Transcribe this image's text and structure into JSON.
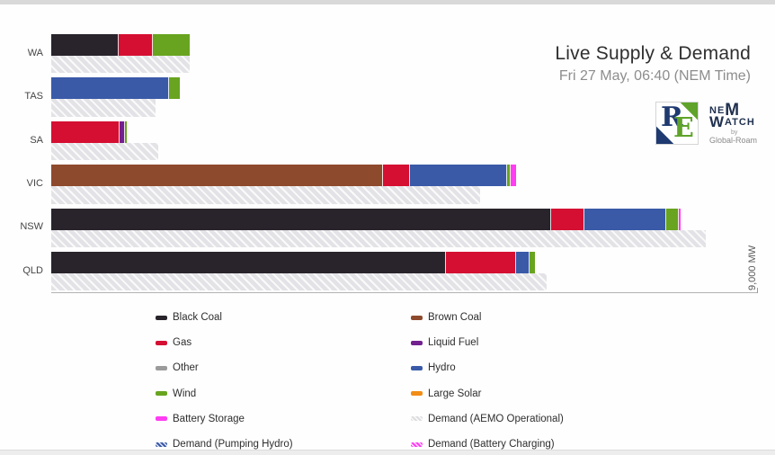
{
  "header": {
    "title": "Live Supply & Demand",
    "subtitle": "Fri 27 May, 06:40 (NEM Time)"
  },
  "logos": {
    "reneweconomy": {
      "letter_r": "R",
      "letter_e": "E",
      "navy": "#1e3a70",
      "green": "#5fa32a"
    },
    "nemwatch": {
      "line1_a": "NE",
      "line1_b": "M",
      "line2_a": "W",
      "line2_b": "ATCH",
      "by_label": "by",
      "company": "Global-Roam"
    }
  },
  "axis": {
    "max_tick_label": "9,000 MW"
  },
  "chart_data": {
    "type": "bar",
    "orientation": "horizontal-stacked",
    "title": "Live Supply & Demand",
    "subtitle": "Fri 27 May, 06:40 (NEM Time)",
    "unit": "MW",
    "xlim": [
      0,
      9000
    ],
    "grid": false,
    "categories": [
      "WA",
      "TAS",
      "SA",
      "VIC",
      "NSW",
      "QLD"
    ],
    "colors": {
      "black_coal": "#29242c",
      "brown_coal": "#8e4a2c",
      "gas": "#d50f32",
      "liquid_fuel": "#72218f",
      "other": "#9b9b9b",
      "hydro": "#3a5aa8",
      "wind": "#68a41f",
      "large_solar": "#f28d15",
      "battery_storage": "#ff3df2",
      "demand_fill": "#e3e2e6"
    },
    "states": [
      {
        "name": "WA",
        "supply": [
          {
            "fuel": "black_coal",
            "mw": 855
          },
          {
            "fuel": "gas",
            "mw": 440
          },
          {
            "fuel": "wind",
            "mw": 470
          }
        ],
        "demand_mw": 1760
      },
      {
        "name": "TAS",
        "supply": [
          {
            "fuel": "hydro",
            "mw": 1500
          },
          {
            "fuel": "wind",
            "mw": 140
          }
        ],
        "demand_mw": 1330
      },
      {
        "name": "SA",
        "supply": [
          {
            "fuel": "gas",
            "mw": 875
          },
          {
            "fuel": "liquid_fuel",
            "mw": 60
          },
          {
            "fuel": "wind",
            "mw": 30
          }
        ],
        "demand_mw": 1365
      },
      {
        "name": "VIC",
        "supply": [
          {
            "fuel": "brown_coal",
            "mw": 4230
          },
          {
            "fuel": "gas",
            "mw": 340
          },
          {
            "fuel": "hydro",
            "mw": 1235
          },
          {
            "fuel": "wind",
            "mw": 45
          },
          {
            "fuel": "battery_storage",
            "mw": 75
          }
        ],
        "demand_mw": 5460
      },
      {
        "name": "NSW",
        "supply": [
          {
            "fuel": "black_coal",
            "mw": 6370
          },
          {
            "fuel": "gas",
            "mw": 420
          },
          {
            "fuel": "hydro",
            "mw": 1040
          },
          {
            "fuel": "wind",
            "mw": 160
          },
          {
            "fuel": "battery_storage",
            "mw": 25
          }
        ],
        "demand_mw": 8340
      },
      {
        "name": "QLD",
        "supply": [
          {
            "fuel": "black_coal",
            "mw": 5030
          },
          {
            "fuel": "gas",
            "mw": 895
          },
          {
            "fuel": "hydro",
            "mw": 170
          },
          {
            "fuel": "wind",
            "mw": 60
          }
        ],
        "demand_mw": 6310
      }
    ]
  },
  "legend": {
    "columns": [
      [
        {
          "label": "Black Coal",
          "color": "#29242c",
          "hatched": false
        },
        {
          "label": "Gas",
          "color": "#d50f32",
          "hatched": false
        },
        {
          "label": "Other",
          "color": "#9b9b9b",
          "hatched": false
        },
        {
          "label": "Wind",
          "color": "#68a41f",
          "hatched": false
        },
        {
          "label": "Battery Storage",
          "color": "#ff3df2",
          "hatched": false
        },
        {
          "label": "Demand (Pumping Hydro)",
          "color": "#3a5aa8",
          "hatched": true
        }
      ],
      [
        {
          "label": "Brown Coal",
          "color": "#8e4a2c",
          "hatched": false
        },
        {
          "label": "Liquid Fuel",
          "color": "#72218f",
          "hatched": false
        },
        {
          "label": "Hydro",
          "color": "#3a5aa8",
          "hatched": false
        },
        {
          "label": "Large Solar",
          "color": "#f28d15",
          "hatched": false
        },
        {
          "label": "Demand (AEMO Operational)",
          "color": "#dddce0",
          "hatched": true
        },
        {
          "label": "Demand (Battery Charging)",
          "color": "#ff3df2",
          "hatched": true
        }
      ]
    ]
  }
}
